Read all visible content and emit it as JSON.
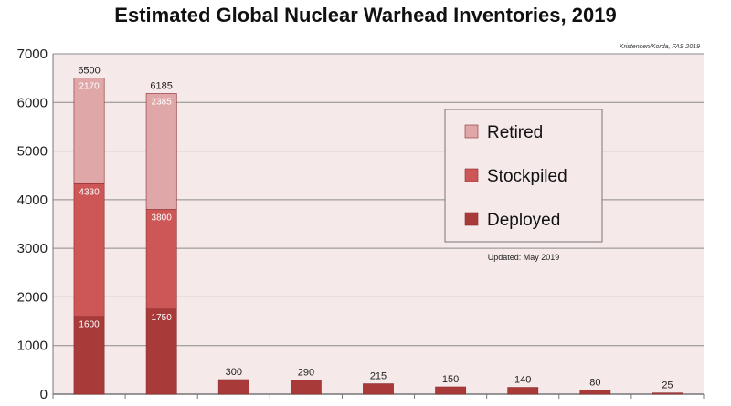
{
  "chart_data": {
    "type": "bar",
    "stacked": true,
    "title": "Estimated Global Nuclear Warhead Inventories, 2019",
    "credit": "Kristensen/Korda, FAS 2019",
    "updated": "Updated: May 2019",
    "xlabel": "",
    "ylabel": "",
    "ylim": [
      0,
      7000
    ],
    "yticks": [
      "0",
      "1000",
      "2000",
      "3000",
      "4000",
      "5000",
      "6000",
      "7000"
    ],
    "grid": true,
    "legend_position": "center-right",
    "categories": [
      "",
      "",
      "",
      "",
      "",
      "",
      "",
      "",
      ""
    ],
    "series": [
      {
        "name": "Deployed",
        "color": "#a83a3a",
        "values": [
          1600,
          1750,
          300,
          290,
          215,
          150,
          140,
          80,
          25
        ]
      },
      {
        "name": "Stockpiled",
        "color": "#cd5757",
        "values": [
          2730,
          2050,
          0,
          0,
          0,
          0,
          0,
          0,
          0
        ]
      },
      {
        "name": "Retired",
        "color": "#dfa7a7",
        "values": [
          2170,
          2385,
          0,
          0,
          0,
          0,
          0,
          0,
          0
        ]
      }
    ],
    "data_labels": {
      "totals": [
        "6500",
        "6185",
        "300",
        "290",
        "215",
        "150",
        "140",
        "80",
        "25"
      ],
      "deployed": [
        "1600",
        "1750",
        "",
        "",
        "",
        "",
        "",
        "",
        ""
      ],
      "stockpiled": [
        "4330",
        "3800",
        "",
        "",
        "",
        "",
        "",
        "",
        ""
      ],
      "retired": [
        "2170",
        "2385",
        "",
        "",
        "",
        "",
        "",
        "",
        ""
      ]
    },
    "legend": [
      "Retired",
      "Stockpiled",
      "Deployed"
    ],
    "colors": {
      "plot_bg": "#f6e9e9",
      "grid": "#8a8a8a",
      "axis": "#777777"
    }
  }
}
